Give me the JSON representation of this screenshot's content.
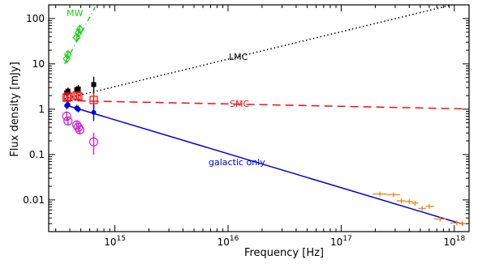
{
  "chart_data": {
    "type": "scatter",
    "xlabel": "Frequency [Hz]",
    "ylabel": "Flux density [mJy]",
    "xscale": "log",
    "yscale": "log",
    "xlim": [
      260000000000000.0,
      1.35e+18
    ],
    "ylim": [
      0.002,
      200
    ],
    "x_ticks": [
      {
        "value": 1000000000000000.0,
        "base": "10",
        "exp": "15"
      },
      {
        "value": 1e+16,
        "base": "10",
        "exp": "16"
      },
      {
        "value": 1e+17,
        "base": "10",
        "exp": "17"
      },
      {
        "value": 1e+18,
        "base": "10",
        "exp": "18"
      }
    ],
    "y_ticks": [
      {
        "value": 0.01,
        "label": "0.01"
      },
      {
        "value": 0.1,
        "label": "0.1"
      },
      {
        "value": 1,
        "label": "1"
      },
      {
        "value": 10,
        "label": "10"
      },
      {
        "value": 100,
        "label": "100"
      }
    ],
    "grid": false,
    "models": [
      {
        "name": "MW",
        "color": "#22cc22",
        "dash": "6,4,1,4",
        "x": [
          360000000000000.0,
          670000000000000.0
        ],
        "y": [
          10,
          180
        ]
      },
      {
        "name": "LMC",
        "color": "#000000",
        "dash": "1.5,3",
        "x": [
          360000000000000.0,
          1.2e+18
        ],
        "y": [
          1.7,
          230
        ]
      },
      {
        "name": "SMC",
        "color": "#ee1111",
        "dash": "10,6",
        "x": [
          360000000000000.0,
          1.2e+18
        ],
        "y": [
          1.55,
          1.02
        ]
      },
      {
        "name": "galactic only",
        "color": "#0000dd",
        "dash": "",
        "x": [
          360000000000000.0,
          1.2e+18
        ],
        "y": [
          1.25,
          0.0029
        ]
      }
    ],
    "series": [
      {
        "color": "#22cc22",
        "marker": "diamond",
        "points": [
          {
            "x": 375000000000000.0,
            "y": 13,
            "yerr": [
              11,
              15.5
            ]
          },
          {
            "x": 385000000000000.0,
            "y": 16,
            "yerr": [
              13.5,
              19
            ]
          },
          {
            "x": 460000000000000.0,
            "y": 38,
            "yerr": [
              32,
              45
            ]
          },
          {
            "x": 475000000000000.0,
            "y": 48,
            "yerr": [
              40,
              57
            ]
          },
          {
            "x": 490000000000000.0,
            "y": 58,
            "yerr": [
              48,
              68
            ]
          }
        ]
      },
      {
        "color": "#000000",
        "marker": "square-filled",
        "points": [
          {
            "x": 375000000000000.0,
            "y": 2.3,
            "yerr": [
              1.9,
              2.8
            ]
          },
          {
            "x": 385000000000000.0,
            "y": 2.5,
            "yerr": [
              2.0,
              3.0
            ]
          },
          {
            "x": 460000000000000.0,
            "y": 2.7,
            "yerr": [
              2.2,
              3.2
            ]
          },
          {
            "x": 475000000000000.0,
            "y": 2.8,
            "yerr": [
              2.3,
              3.4
            ]
          },
          {
            "x": 650000000000000.0,
            "y": 3.5,
            "yerr": [
              2.2,
              5.2
            ]
          }
        ]
      },
      {
        "color": "#ee1111",
        "marker": "square-open",
        "points": [
          {
            "x": 375000000000000.0,
            "y": 1.8,
            "yerr": [
              1.5,
              2.1
            ]
          },
          {
            "x": 385000000000000.0,
            "y": 1.9,
            "yerr": [
              1.6,
              2.2
            ]
          },
          {
            "x": 460000000000000.0,
            "y": 2.0,
            "yerr": [
              1.7,
              2.3
            ]
          },
          {
            "x": 475000000000000.0,
            "y": 1.9,
            "yerr": [
              1.6,
              2.2
            ]
          },
          {
            "x": 650000000000000.0,
            "y": 1.6,
            "yerr": [
              1.0,
              2.3
            ]
          }
        ]
      },
      {
        "color": "#0000dd",
        "marker": "circle-filled",
        "points": [
          {
            "x": 375000000000000.0,
            "y": 1.2,
            "yerr": [
              1.0,
              1.45
            ]
          },
          {
            "x": 385000000000000.0,
            "y": 1.25,
            "yerr": [
              1.05,
              1.5
            ]
          },
          {
            "x": 460000000000000.0,
            "y": 1.05,
            "yerr": [
              0.9,
              1.25
            ]
          },
          {
            "x": 475000000000000.0,
            "y": 1.0,
            "yerr": [
              0.85,
              1.2
            ]
          },
          {
            "x": 650000000000000.0,
            "y": 0.85,
            "yerr": [
              0.55,
              1.3
            ]
          }
        ]
      },
      {
        "color": "#cc22cc",
        "marker": "circle-open",
        "points": [
          {
            "x": 375000000000000.0,
            "y": 0.7,
            "yerr": [
              0.55,
              0.9
            ]
          },
          {
            "x": 385000000000000.0,
            "y": 0.55,
            "yerr": [
              0.45,
              0.68
            ]
          },
          {
            "x": 460000000000000.0,
            "y": 0.45,
            "yerr": [
              0.36,
              0.55
            ]
          },
          {
            "x": 475000000000000.0,
            "y": 0.4,
            "yerr": [
              0.33,
              0.5
            ]
          },
          {
            "x": 490000000000000.0,
            "y": 0.35,
            "yerr": [
              0.28,
              0.44
            ]
          },
          {
            "x": 650000000000000.0,
            "y": 0.19,
            "yerr": [
              0.1,
              0.3
            ]
          }
        ]
      },
      {
        "color": "#ee8822",
        "marker": "cross",
        "points": [
          {
            "x": 2.2e+17,
            "y": 0.0135,
            "xerr": [
              1.9e+17,
              2.55e+17
            ]
          },
          {
            "x": 2.9e+17,
            "y": 0.013,
            "xerr": [
              2.55e+17,
              3.3e+17
            ]
          },
          {
            "x": 3.4e+17,
            "y": 0.0095,
            "xerr": [
              3.1e+17,
              3.7e+17
            ]
          },
          {
            "x": 4e+17,
            "y": 0.0092,
            "xerr": [
              3.7e+17,
              4.3e+17
            ]
          },
          {
            "x": 4.5e+17,
            "y": 0.0085,
            "xerr": [
              4.2e+17,
              4.8e+17
            ]
          },
          {
            "x": 5.2e+17,
            "y": 0.0065,
            "xerr": [
              4.8e+17,
              5.6e+17
            ]
          },
          {
            "x": 6e+17,
            "y": 0.0072,
            "xerr": [
              5.6e+17,
              6.6e+17
            ]
          },
          {
            "x": 7.5e+17,
            "y": 0.0038,
            "xerr": [
              6.6e+17,
              8.4e+17
            ]
          },
          {
            "x": 1.05e+18,
            "y": 0.0031,
            "xerr": [
              9.2e+17,
              1.2e+18
            ]
          },
          {
            "x": 1.18e+18,
            "y": 0.003,
            "xerr": [
              1.1e+18,
              1.3e+18
            ]
          }
        ]
      }
    ]
  }
}
